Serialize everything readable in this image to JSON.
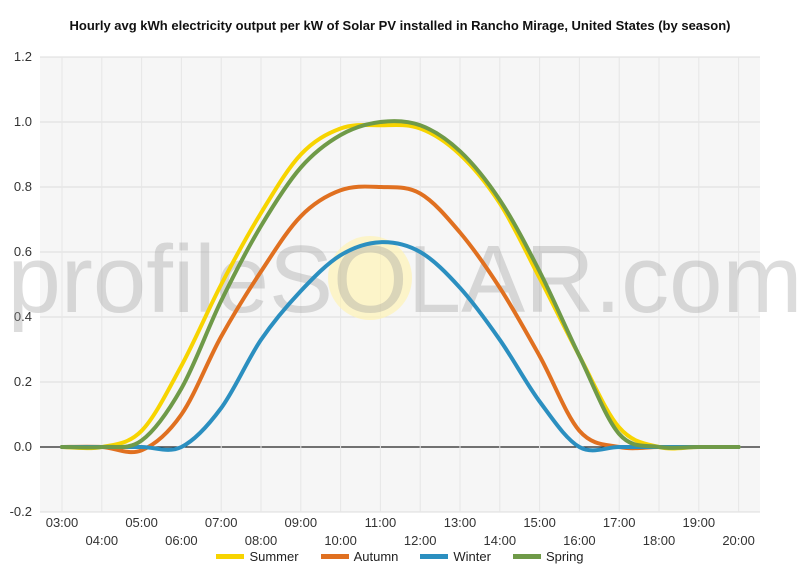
{
  "chart_data": {
    "type": "line",
    "title": "Hourly avg kWh electricity output per kW of Solar PV installed in Rancho Mirage, United States (by season)",
    "watermark": "profileSOLAR.com",
    "ylim": [
      -0.2,
      1.2
    ],
    "yticks": [
      "-0.2",
      "0.0",
      "0.2",
      "0.4",
      "0.6",
      "0.8",
      "1.0",
      "1.2"
    ],
    "ytick_values": [
      -0.2,
      0.0,
      0.2,
      0.4,
      0.6,
      0.8,
      1.0,
      1.2
    ],
    "x": [
      "03:00",
      "04:00",
      "05:00",
      "06:00",
      "07:00",
      "08:00",
      "09:00",
      "10:00",
      "11:00",
      "12:00",
      "13:00",
      "14:00",
      "15:00",
      "16:00",
      "17:00",
      "18:00",
      "19:00",
      "20:00"
    ],
    "series": [
      {
        "name": "Summer",
        "color": "#f7d400",
        "values": [
          0.0,
          0.0,
          0.05,
          0.25,
          0.5,
          0.72,
          0.9,
          0.98,
          0.99,
          0.98,
          0.9,
          0.75,
          0.52,
          0.28,
          0.06,
          0.0,
          0.0,
          0.0
        ]
      },
      {
        "name": "Autumn",
        "color": "#e07020",
        "values": [
          0.0,
          0.0,
          -0.01,
          0.1,
          0.34,
          0.54,
          0.71,
          0.79,
          0.8,
          0.78,
          0.66,
          0.49,
          0.28,
          0.05,
          0.0,
          0.0,
          0.0,
          0.0
        ]
      },
      {
        "name": "Winter",
        "color": "#2b8fc0",
        "values": [
          0.0,
          0.0,
          0.0,
          0.0,
          0.12,
          0.33,
          0.48,
          0.59,
          0.63,
          0.6,
          0.49,
          0.33,
          0.14,
          0.0,
          0.0,
          0.0,
          0.0,
          0.0
        ]
      },
      {
        "name": "Spring",
        "color": "#6f9a48",
        "values": [
          0.0,
          0.0,
          0.02,
          0.18,
          0.45,
          0.68,
          0.86,
          0.96,
          1.0,
          0.99,
          0.91,
          0.76,
          0.54,
          0.28,
          0.04,
          0.0,
          0.0,
          0.0
        ]
      }
    ],
    "grid": true,
    "legend_position": "bottom"
  }
}
